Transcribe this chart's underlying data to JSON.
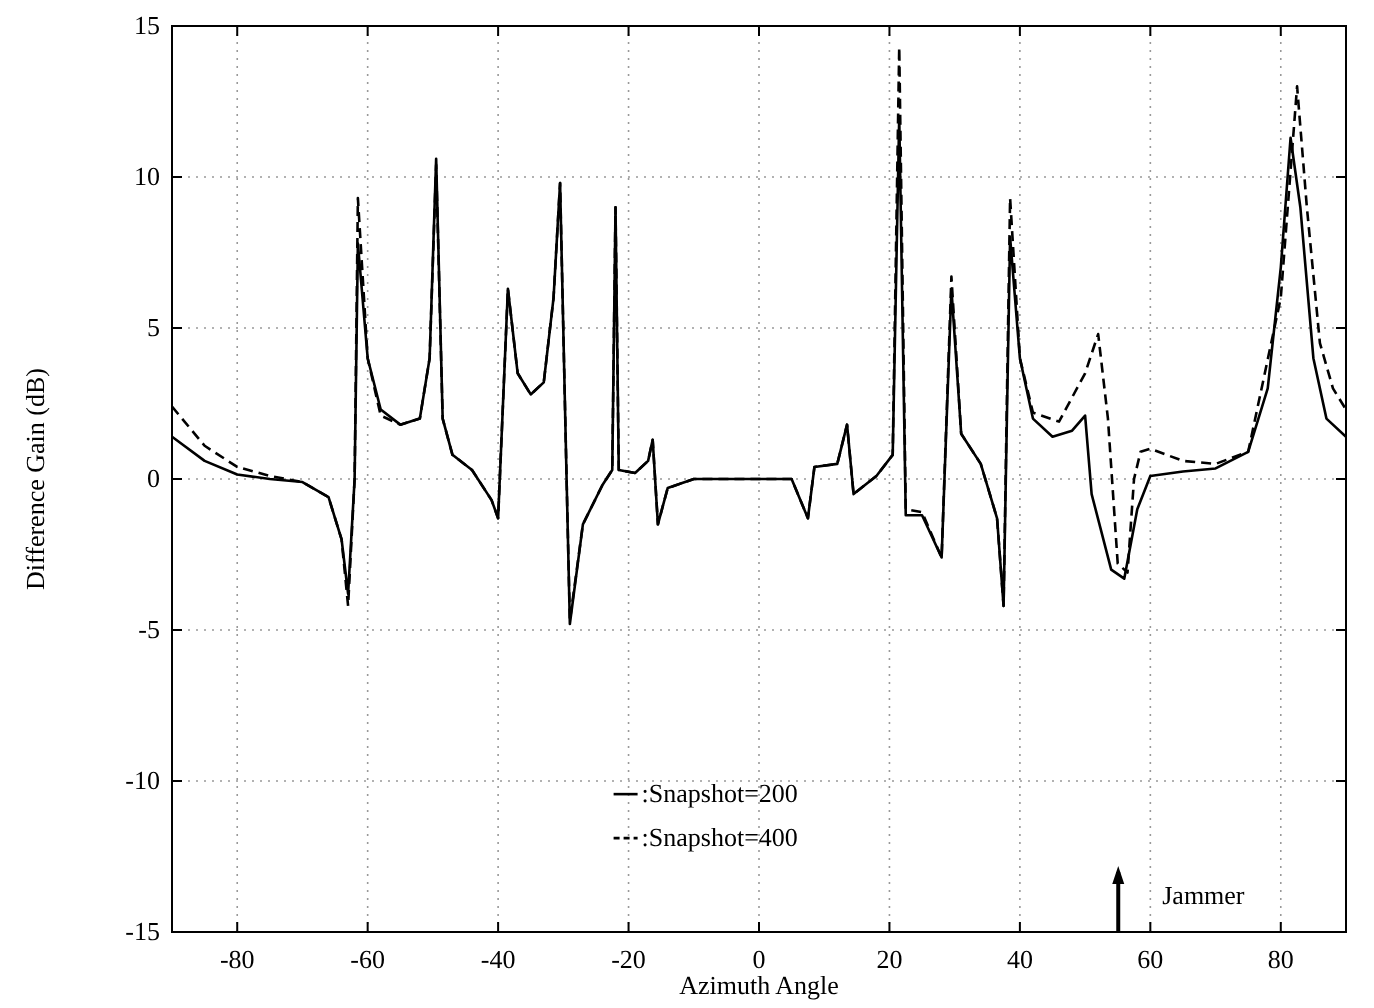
{
  "chart_data": {
    "type": "line",
    "xlabel": "Azimuth Angle",
    "ylabel": "Difference Gain (dB)",
    "xlim": [
      -90,
      90
    ],
    "ylim": [
      -15,
      15
    ],
    "xticks": [
      -80,
      -60,
      -40,
      -20,
      0,
      20,
      40,
      60,
      80
    ],
    "yticks": [
      -15,
      -10,
      -5,
      0,
      5,
      10,
      15
    ],
    "grid": true,
    "legend": "bottom",
    "series": [
      {
        "name": ":Snapshot=200",
        "color": "#000000",
        "line_style": "solid",
        "x": [
          -90,
          -85,
          -80,
          -75,
          -70,
          -66,
          -64,
          -63,
          -62,
          -61.5,
          -60,
          -58,
          -55,
          -52,
          -50.5,
          -49.5,
          -48.5,
          -47,
          -44,
          -41,
          -40,
          -38.5,
          -37,
          -35,
          -33,
          -31.5,
          -30.5,
          -29.5,
          -29,
          -27,
          -24,
          -22.5,
          -22,
          -21.5,
          -19,
          -17,
          -16.3,
          -15.5,
          -14,
          -10,
          0,
          5,
          7.5,
          8.5,
          12,
          13.5,
          14.5,
          18,
          20.5,
          21.5,
          22.5,
          25,
          28,
          29.5,
          31,
          34,
          36.5,
          37.5,
          38.5,
          40,
          42,
          45,
          48,
          50,
          51,
          54,
          56,
          58,
          60,
          65,
          70,
          75,
          78,
          80,
          81.5,
          83,
          85,
          87,
          90
        ],
        "values": [
          1.4,
          0.6,
          0.15,
          0,
          -0.1,
          -0.6,
          -2,
          -3.8,
          0,
          7.8,
          4,
          2.3,
          1.8,
          2,
          4,
          10.6,
          2,
          0.8,
          0.3,
          -0.7,
          -1.3,
          6.3,
          3.5,
          2.8,
          3.2,
          6,
          9.8,
          0,
          -4.8,
          -1.5,
          -0.2,
          0.3,
          9,
          0.3,
          0.2,
          0.6,
          1.3,
          -1.5,
          -0.3,
          0,
          0,
          0,
          -1.3,
          0.4,
          0.5,
          1.8,
          -0.5,
          0.1,
          0.8,
          12,
          -1.2,
          -1.2,
          -2.6,
          6.3,
          1.5,
          0.5,
          -1.3,
          -4.2,
          8,
          4,
          2,
          1.4,
          1.6,
          2.1,
          -0.5,
          -3,
          -3.3,
          -1,
          0.1,
          0.25,
          0.35,
          0.9,
          3,
          7,
          11.3,
          9,
          4,
          2,
          1.4
        ]
      },
      {
        "name": ":Snapshot=400",
        "color": "#000000",
        "line_style": "dashed",
        "x": [
          -90,
          -85,
          -80,
          -75,
          -70,
          -66,
          -64,
          -63,
          -62,
          -61.5,
          -60,
          -58,
          -55,
          -52,
          -50.5,
          -49.5,
          -48.5,
          -47,
          -44,
          -41,
          -40,
          -38.5,
          -37,
          -35,
          -33,
          -31.5,
          -30.5,
          -29.5,
          -29,
          -27,
          -24,
          -22.5,
          -22,
          -21.5,
          -19,
          -17,
          -16.3,
          -15.5,
          -14,
          -10,
          0,
          5,
          7.5,
          8.5,
          12,
          13.5,
          14.5,
          18,
          20.5,
          21.5,
          22.5,
          25,
          28,
          29.5,
          31,
          34,
          36.5,
          37.5,
          38.5,
          40,
          42,
          46,
          50,
          52,
          53.5,
          55,
          56.5,
          57.5,
          58.5,
          60,
          65,
          70,
          75,
          80,
          82.5,
          84,
          86,
          88,
          90
        ],
        "values": [
          2.4,
          1.1,
          0.4,
          0.1,
          -0.1,
          -0.6,
          -2,
          -4.2,
          0,
          9.3,
          4,
          2.1,
          1.8,
          2,
          4,
          10.4,
          2,
          0.8,
          0.3,
          -0.7,
          -1.3,
          6.3,
          3.5,
          2.8,
          3.2,
          6,
          9.8,
          0,
          -4.7,
          -1.5,
          -0.2,
          0.3,
          9,
          0.3,
          0.2,
          0.6,
          1.3,
          -1.5,
          -0.3,
          0,
          0,
          0,
          -1.3,
          0.4,
          0.5,
          1.8,
          -0.5,
          0.1,
          0.8,
          14.3,
          -1,
          -1.1,
          -2.6,
          6.7,
          1.5,
          0.5,
          -1.3,
          -4.2,
          9.3,
          4,
          2.2,
          1.9,
          3.5,
          4.8,
          2,
          -2.8,
          -3.1,
          0,
          0.9,
          1,
          0.6,
          0.5,
          0.9,
          6,
          13,
          9,
          4.5,
          3,
          2.3
        ]
      }
    ],
    "annotations": [
      "Jammer"
    ]
  }
}
